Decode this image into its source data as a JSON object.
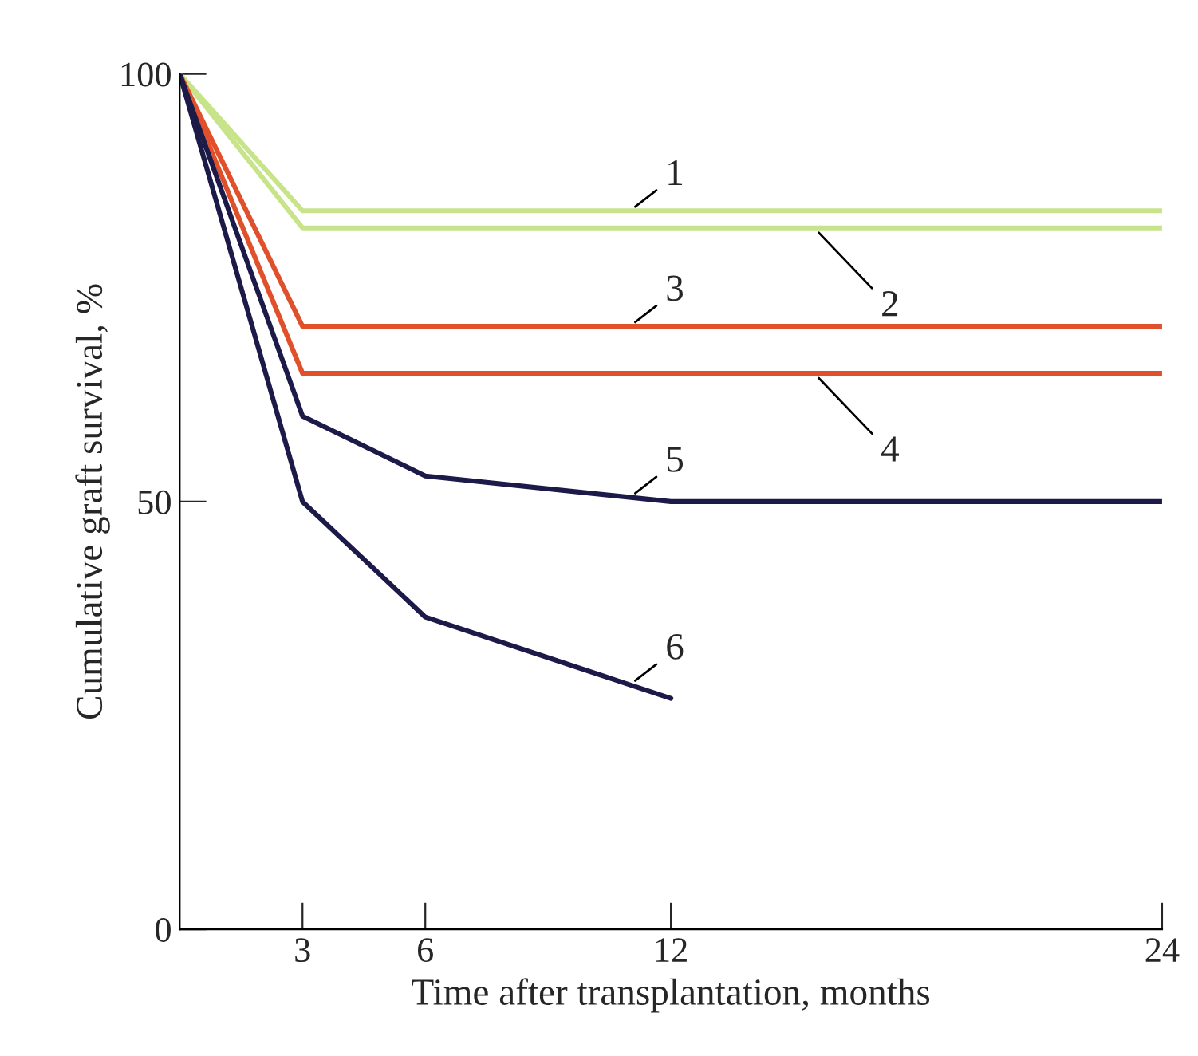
{
  "chart_data": {
    "type": "line",
    "xlabel": "Time after transplantation, months",
    "ylabel": "Cumulative graft survival, %",
    "xlim": [
      0,
      24
    ],
    "ylim": [
      0,
      100
    ],
    "xticks": [
      3,
      6,
      12,
      24
    ],
    "yticks": [
      0,
      50,
      100
    ],
    "grid": false,
    "legend": false,
    "marker": "none",
    "line_style": "solid",
    "series": [
      {
        "name": "1",
        "color": "#c8e48a",
        "x": [
          0,
          3,
          24
        ],
        "values": [
          100,
          84,
          84
        ]
      },
      {
        "name": "2",
        "color": "#c8e48a",
        "x": [
          0,
          3,
          24
        ],
        "values": [
          100,
          82,
          82
        ]
      },
      {
        "name": "3",
        "color": "#e0502a",
        "x": [
          0,
          3,
          24
        ],
        "values": [
          100,
          70.5,
          70.5
        ]
      },
      {
        "name": "4",
        "color": "#e0502a",
        "x": [
          0,
          3,
          24
        ],
        "values": [
          100,
          65,
          65
        ]
      },
      {
        "name": "5",
        "color": "#1c1a48",
        "x": [
          0,
          3,
          6,
          12,
          24
        ],
        "values": [
          100,
          60,
          53,
          50,
          50
        ]
      },
      {
        "name": "6",
        "color": "#1c1a48",
        "x": [
          0,
          3,
          6,
          12
        ],
        "values": [
          100,
          50,
          36.5,
          27
        ]
      }
    ]
  }
}
